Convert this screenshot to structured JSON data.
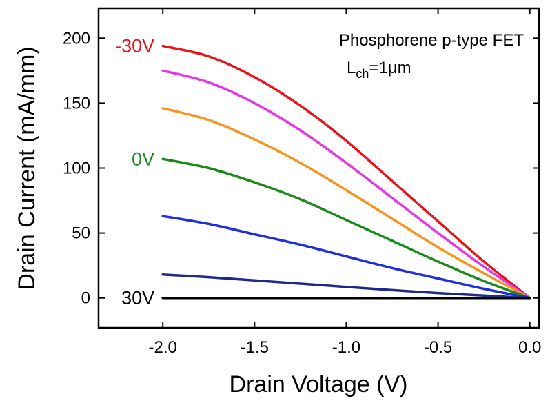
{
  "chart_data": {
    "type": "line",
    "title": "",
    "xlabel": "Drain Voltage (V)",
    "ylabel": "Drain Current (mA/mm)",
    "xlim": [
      -2.35,
      0.05
    ],
    "ylim": [
      -23,
      223
    ],
    "xticks": [
      -2.0,
      -1.5,
      -1.0,
      -0.5,
      0.0
    ],
    "xtick_labels": [
      "-2.0",
      "-1.5",
      "-1.0",
      "-0.5",
      "0.0"
    ],
    "yticks": [
      0,
      50,
      100,
      150,
      200
    ],
    "ytick_labels": [
      "0",
      "50",
      "100",
      "150",
      "200"
    ],
    "grid": false,
    "annotations": {
      "line1": "Phosphorene p-type FET",
      "line2_prefix": "L",
      "line2_sub": "ch",
      "line2_suffix": "=1μm"
    },
    "series": [
      {
        "label": "-30V",
        "color": "#e8141c",
        "x": [
          -2.0,
          -1.75,
          -1.5,
          -1.25,
          -1.0,
          -0.75,
          -0.5,
          -0.25,
          0.0
        ],
        "y": [
          194,
          186,
          170,
          148,
          121,
          90,
          59,
          28,
          0
        ]
      },
      {
        "label": "",
        "color": "#e835e8",
        "x": [
          -2.0,
          -1.75,
          -1.5,
          -1.25,
          -1.0,
          -0.75,
          -0.5,
          -0.25,
          0.0
        ],
        "y": [
          175,
          166,
          150,
          129,
          104,
          77,
          50,
          24,
          0
        ]
      },
      {
        "label": "",
        "color": "#f7941d",
        "x": [
          -2.0,
          -1.75,
          -1.5,
          -1.25,
          -1.0,
          -0.75,
          -0.5,
          -0.25,
          0.0
        ],
        "y": [
          146,
          137,
          122,
          104,
          83,
          61,
          39,
          19,
          0
        ]
      },
      {
        "label": "0V",
        "color": "#1a8a1a",
        "x": [
          -2.0,
          -1.75,
          -1.5,
          -1.25,
          -1.0,
          -0.75,
          -0.5,
          -0.25,
          0.0
        ],
        "y": [
          107,
          100,
          89,
          76,
          60,
          44,
          28,
          13,
          0
        ]
      },
      {
        "label": "",
        "color": "#1f2ee0",
        "x": [
          -2.0,
          -1.75,
          -1.5,
          -1.25,
          -1.0,
          -0.75,
          -0.5,
          -0.25,
          0.0
        ],
        "y": [
          63,
          57,
          49,
          41,
          32,
          23,
          15,
          7,
          0
        ]
      },
      {
        "label": "",
        "color": "#1e2a8a",
        "x": [
          -2.0,
          -1.75,
          -1.5,
          -1.25,
          -1.0,
          -0.75,
          -0.5,
          -0.25,
          0.0
        ],
        "y": [
          18,
          16,
          13.5,
          11,
          8.5,
          6,
          3.8,
          1.8,
          0
        ]
      },
      {
        "label": "30V",
        "color": "#000000",
        "x": [
          -2.0,
          -1.5,
          -1.0,
          -0.5,
          0.0
        ],
        "y": [
          0,
          0,
          0,
          0,
          0
        ]
      }
    ]
  }
}
